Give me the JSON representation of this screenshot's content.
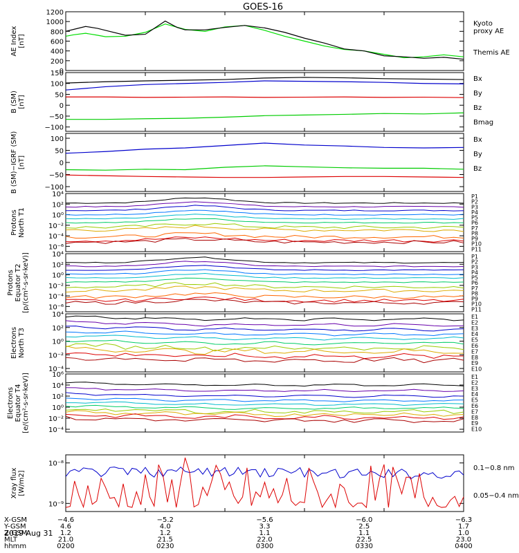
{
  "title": "GOES-16",
  "date": "2019 Aug 31",
  "chart_data": [
    {
      "type": "line",
      "ylabel": "AE Index\n[nT]",
      "ylim": [
        0,
        1200
      ],
      "yticks": [
        0,
        200,
        400,
        600,
        800,
        1000,
        1200
      ],
      "ytick_labels": [
        "0",
        "200",
        "400",
        "600",
        "800",
        "1000",
        "1200"
      ],
      "log": false,
      "series": [
        {
          "name": "Kyoto\nproxy AE",
          "color": "#00dd00",
          "x": [
            0,
            0.02,
            0.05,
            0.08,
            0.1,
            0.15,
            0.2,
            0.25,
            0.3,
            0.35,
            0.4,
            0.45,
            0.5,
            0.55,
            0.6,
            0.65,
            0.7,
            0.75,
            0.8,
            0.85,
            0.9,
            0.95,
            1.0
          ],
          "y": [
            700,
            730,
            760,
            720,
            690,
            700,
            780,
            950,
            840,
            800,
            890,
            920,
            820,
            700,
            600,
            500,
            430,
            400,
            330,
            260,
            280,
            320,
            280
          ]
        },
        {
          "name": "Themis AE",
          "color": "#000000",
          "x": [
            0,
            0.02,
            0.05,
            0.08,
            0.1,
            0.15,
            0.2,
            0.25,
            0.28,
            0.3,
            0.35,
            0.4,
            0.45,
            0.5,
            0.55,
            0.6,
            0.65,
            0.7,
            0.75,
            0.8,
            0.85,
            0.9,
            0.95,
            1.0
          ],
          "y": [
            800,
            840,
            900,
            860,
            820,
            720,
            740,
            1010,
            880,
            830,
            830,
            880,
            920,
            870,
            780,
            660,
            560,
            440,
            400,
            300,
            280,
            250,
            270,
            230
          ]
        }
      ]
    },
    {
      "type": "line",
      "ylabel": "B (SM)\n[nT]",
      "ylim": [
        -120,
        150
      ],
      "yticks": [
        -100,
        -50,
        0,
        50,
        100,
        150
      ],
      "ytick_labels": [
        "−100",
        "−50",
        "0",
        "50",
        "100",
        "150"
      ],
      "log": false,
      "series": [
        {
          "name": "Bx",
          "color": "#0000cc",
          "x": [
            0,
            0.1,
            0.2,
            0.3,
            0.4,
            0.5,
            0.6,
            0.7,
            0.8,
            0.9,
            1.0
          ],
          "y": [
            70,
            85,
            95,
            100,
            105,
            112,
            110,
            108,
            105,
            100,
            98
          ]
        },
        {
          "name": "By",
          "color": "#00cc00",
          "x": [
            0,
            0.1,
            0.2,
            0.3,
            0.4,
            0.5,
            0.6,
            0.7,
            0.8,
            0.9,
            1.0
          ],
          "y": [
            -65,
            -65,
            -62,
            -60,
            -55,
            -48,
            -45,
            -42,
            -38,
            -40,
            -35
          ]
        },
        {
          "name": "Bz",
          "color": "#dd0000",
          "x": [
            0,
            0.1,
            0.2,
            0.3,
            0.4,
            0.5,
            0.6,
            0.7,
            0.8,
            0.9,
            1.0
          ],
          "y": [
            38,
            38,
            36,
            37,
            38,
            36,
            37,
            38,
            36,
            37,
            35
          ]
        },
        {
          "name": "Bmag",
          "color": "#000000",
          "x": [
            0,
            0.1,
            0.2,
            0.3,
            0.4,
            0.5,
            0.6,
            0.7,
            0.8,
            0.9,
            1.0
          ],
          "y": [
            102,
            108,
            112,
            115,
            118,
            125,
            128,
            126,
            122,
            120,
            118
          ]
        }
      ]
    },
    {
      "type": "line",
      "ylabel": "B (SM)−IGRF (SM)\n[nT]",
      "ylim": [
        -120,
        120
      ],
      "yticks": [
        -100,
        -50,
        0,
        50,
        100
      ],
      "ytick_labels": [
        "−100",
        "−50",
        "0",
        "50",
        "100"
      ],
      "log": false,
      "series": [
        {
          "name": "Bx",
          "color": "#0000cc",
          "x": [
            0,
            0.1,
            0.2,
            0.3,
            0.4,
            0.5,
            0.6,
            0.7,
            0.8,
            0.9,
            1.0
          ],
          "y": [
            38,
            45,
            55,
            60,
            70,
            80,
            72,
            68,
            62,
            60,
            62
          ]
        },
        {
          "name": "By",
          "color": "#00cc00",
          "x": [
            0,
            0.1,
            0.2,
            0.3,
            0.4,
            0.5,
            0.6,
            0.7,
            0.8,
            0.9,
            1.0
          ],
          "y": [
            -30,
            -32,
            -28,
            -30,
            -20,
            -14,
            -18,
            -22,
            -24,
            -24,
            -28
          ]
        },
        {
          "name": "Bz",
          "color": "#dd0000",
          "x": [
            0,
            0.1,
            0.2,
            0.3,
            0.4,
            0.5,
            0.6,
            0.7,
            0.8,
            0.9,
            1.0
          ],
          "y": [
            -52,
            -55,
            -58,
            -60,
            -62,
            -62,
            -60,
            -58,
            -58,
            -60,
            -62
          ]
        }
      ]
    },
    {
      "type": "line",
      "ylabel": "Protons\nNorth T1",
      "ylim": [
        -7,
        4
      ],
      "yticks": [
        -6,
        -4,
        -2,
        0,
        2,
        4
      ],
      "ytick_labels": [
        "10⁻⁶",
        "10⁻⁴",
        "10⁻²",
        "10⁰",
        "10²",
        "10⁴"
      ],
      "log": true,
      "channel_labels": [
        "P1",
        "P2",
        "P3",
        "P4",
        "P5",
        "P6",
        "P7",
        "P8",
        "P9",
        "P10",
        "P11"
      ],
      "channel_colors": [
        "#000000",
        "#6600aa",
        "#0000cc",
        "#0077ff",
        "#00bbcc",
        "#00cc66",
        "#99cc00",
        "#ddaa00",
        "#ff6600",
        "#dd0000",
        "#aa0000"
      ],
      "levels": [
        2.2,
        1.5,
        0.8,
        0.0,
        -0.8,
        -1.5,
        -2.4,
        -2.9,
        -4.2,
        -4.9,
        -5.2
      ],
      "bump": 1.0
    },
    {
      "type": "line",
      "ylabel": "Protons\nEquator T2\n[p/(cm²-s-sr-keV)]",
      "ylim": [
        -7,
        4
      ],
      "yticks": [
        -6,
        -4,
        -2,
        0,
        2,
        4
      ],
      "ytick_labels": [
        "10⁻⁶",
        "10⁻⁴",
        "10⁻²",
        "10⁰",
        "10²",
        "10⁴"
      ],
      "log": true,
      "channel_labels": [
        "P1",
        "P2",
        "P3",
        "P4",
        "P5",
        "P6",
        "P7",
        "P8",
        "P9",
        "P10",
        "P11"
      ],
      "channel_colors": [
        "#000000",
        "#6600aa",
        "#0000cc",
        "#0077ff",
        "#00bbcc",
        "#00cc66",
        "#99cc00",
        "#ddaa00",
        "#ff6600",
        "#dd0000",
        "#aa0000"
      ],
      "levels": [
        2.3,
        1.6,
        0.9,
        0.1,
        -0.6,
        -1.4,
        -2.3,
        -3.0,
        -4.2,
        -4.9,
        -5.3
      ],
      "bump": 1.0
    },
    {
      "type": "line",
      "ylabel": "Electrons\nNorth T3",
      "ylim": [
        -4.5,
        4
      ],
      "yticks": [
        -4,
        -2,
        0,
        2,
        4
      ],
      "ytick_labels": [
        "10⁻⁴",
        "10⁻²",
        "10⁰",
        "10²",
        "10⁴"
      ],
      "log": true,
      "channel_labels": [
        "E1",
        "E2",
        "E3",
        "E4",
        "E5",
        "E6",
        "E7",
        "E8",
        "E9",
        "E10"
      ],
      "channel_colors": [
        "#000000",
        "#6600aa",
        "#0000cc",
        "#0077ff",
        "#00bbcc",
        "#00cc66",
        "#99cc00",
        "#ddaa00",
        "#dd0000",
        "#aa0000"
      ],
      "levels": [
        3.2,
        2.4,
        1.7,
        1.0,
        0.4,
        -0.3,
        -1.0,
        -1.5,
        -2.2,
        -2.8
      ],
      "bump": -1.5
    },
    {
      "type": "line",
      "ylabel": "Electrons\nEquator T4\n[e/(cm²-s-sr-keV)]",
      "ylim": [
        -4.5,
        6
      ],
      "yticks": [
        -4,
        -2,
        0,
        2,
        4,
        6
      ],
      "ytick_labels": [
        "10⁻⁴",
        "10⁻²",
        "10⁰",
        "10²",
        "10⁴",
        "10⁶"
      ],
      "log": true,
      "channel_labels": [
        "E1",
        "E2",
        "E3",
        "E4",
        "E5",
        "E6",
        "E7",
        "E8",
        "E9",
        "E10"
      ],
      "channel_colors": [
        "#000000",
        "#6600aa",
        "#0000cc",
        "#0077ff",
        "#00bbcc",
        "#00cc66",
        "#99cc00",
        "#ddaa00",
        "#dd0000",
        "#aa0000"
      ],
      "levels": [
        4.0,
        3.0,
        2.0,
        1.2,
        0.5,
        -0.2,
        -0.8,
        -1.3,
        -1.8,
        -2.4
      ],
      "bump": -1.2
    },
    {
      "type": "line",
      "ylabel": "Xray flux\n[W/m2]",
      "ylim": [
        -9.2,
        -7.8
      ],
      "yticks": [
        -9,
        -8
      ],
      "ytick_labels": [
        "10⁻⁹",
        "10⁻⁸"
      ],
      "log": true,
      "series": [
        {
          "name": "0.1−0.8 nm",
          "color": "#0000cc"
        },
        {
          "name": "0.05−0.4 nm",
          "color": "#dd0000"
        }
      ]
    }
  ],
  "xaxis": {
    "ticks": [
      0,
      0.2,
      0.4,
      0.6,
      0.8,
      1.0
    ],
    "rows": [
      {
        "label": "X-GSM",
        "values": [
          "−4.6",
          "−5.2",
          "−5.6",
          "−6.0",
          "−6.3"
        ]
      },
      {
        "label": "Y-GSM",
        "values": [
          "4.6",
          "4.0",
          "3.3",
          "2.5",
          "1.7"
        ]
      },
      {
        "label": "Z-GSM",
        "values": [
          "1.2",
          "1.2",
          "1.1",
          "1.1",
          "1.0"
        ]
      },
      {
        "label": "MLT",
        "values": [
          "21.0",
          "21.5",
          "22.0",
          "22.5",
          "23.0"
        ]
      },
      {
        "label": "hhmm",
        "values": [
          "0200",
          "0230",
          "0300",
          "0330",
          "0400"
        ]
      }
    ]
  }
}
